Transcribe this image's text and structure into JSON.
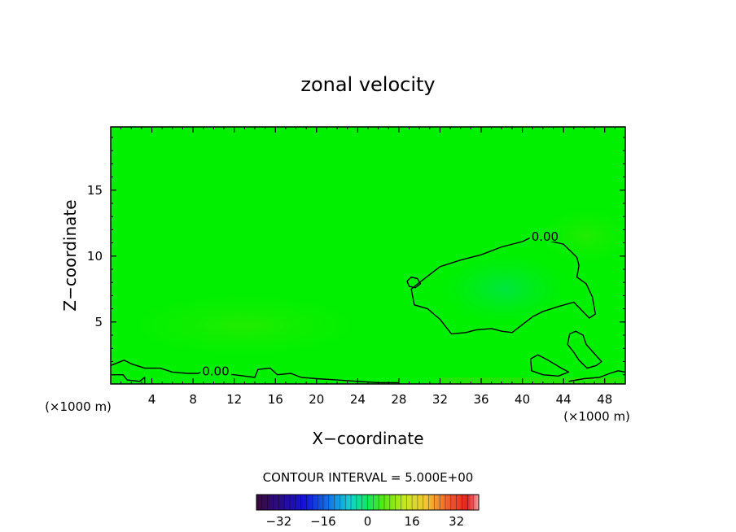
{
  "chart_data": {
    "type": "contour",
    "title": "zonal velocity",
    "xlabel": "X−coordinate",
    "ylabel": "Z−coordinate",
    "x_unit_left": "(×1000 m)",
    "x_unit_right": "(×1000 m)",
    "xlim": [
      0,
      50
    ],
    "ylim": [
      0.3,
      19.8
    ],
    "xticks": [
      4,
      8,
      12,
      16,
      20,
      24,
      28,
      32,
      36,
      40,
      44,
      48
    ],
    "yticks": [
      5,
      10,
      15
    ],
    "field_color": "#00f000",
    "contour_label": "0.00",
    "contours": [
      {
        "name": "main-zero-contour",
        "level": 0.0,
        "labeled": true,
        "points": [
          [
            29.2,
            7.5
          ],
          [
            30.5,
            8.3
          ],
          [
            32,
            9.2
          ],
          [
            34,
            9.7
          ],
          [
            36,
            10.1
          ],
          [
            38,
            10.7
          ],
          [
            40,
            11.1
          ],
          [
            40.8,
            11.4
          ],
          [
            41.2,
            11.4
          ],
          [
            44,
            10.9
          ],
          [
            45.3,
            9.9
          ],
          [
            45.5,
            9.3
          ],
          [
            45.3,
            8.4
          ],
          [
            46.2,
            7.9
          ],
          [
            46.8,
            6.9
          ],
          [
            47.1,
            5.6
          ],
          [
            46.5,
            5.3
          ],
          [
            45,
            6.5
          ],
          [
            43.6,
            6.2
          ],
          [
            42,
            5.8
          ],
          [
            41,
            5.4
          ],
          [
            40,
            4.8
          ],
          [
            39,
            4.2
          ],
          [
            38,
            4.3
          ],
          [
            37,
            4.5
          ],
          [
            35.5,
            4.4
          ],
          [
            34.5,
            4.2
          ],
          [
            33.1,
            4.1
          ],
          [
            32,
            5.2
          ],
          [
            30.8,
            6.0
          ],
          [
            29.5,
            6.3
          ],
          [
            29.2,
            7.5
          ]
        ]
      },
      {
        "name": "small-zero-contour",
        "level": 0.0,
        "labeled": false,
        "points": [
          [
            28.8,
            8.1
          ],
          [
            29.2,
            8.4
          ],
          [
            29.8,
            8.3
          ],
          [
            30.1,
            7.9
          ],
          [
            29.6,
            7.6
          ],
          [
            29.0,
            7.7
          ],
          [
            28.8,
            8.1
          ]
        ]
      },
      {
        "name": "lower-right-zero-contour",
        "level": 0.0,
        "labeled": false,
        "points": [
          [
            44.6,
            4.1
          ],
          [
            45.2,
            4.3
          ],
          [
            45.9,
            4.0
          ],
          [
            46.2,
            3.3
          ],
          [
            47.0,
            2.6
          ],
          [
            47.7,
            2.0
          ],
          [
            47.2,
            1.7
          ],
          [
            46.3,
            1.5
          ],
          [
            45.5,
            2.1
          ],
          [
            45.0,
            2.7
          ],
          [
            44.4,
            3.3
          ],
          [
            44.6,
            4.1
          ]
        ]
      },
      {
        "name": "lower-right-zero-contour-2",
        "level": 0.0,
        "labeled": false,
        "points": [
          [
            40.8,
            2.2
          ],
          [
            41.5,
            2.5
          ],
          [
            42.5,
            2.1
          ],
          [
            43.8,
            1.5
          ],
          [
            44.5,
            1.2
          ],
          [
            43.5,
            0.9
          ],
          [
            42,
            1.0
          ],
          [
            40.9,
            1.3
          ],
          [
            40.8,
            2.2
          ]
        ]
      },
      {
        "name": "bottom-zero-contour",
        "level": 0.0,
        "labeled": true,
        "points": [
          [
            0,
            1.7
          ],
          [
            1.3,
            2.1
          ],
          [
            2.1,
            1.8
          ],
          [
            3.3,
            1.5
          ],
          [
            4.8,
            1.5
          ],
          [
            6.0,
            1.2
          ],
          [
            7.5,
            1.1
          ],
          [
            8.5,
            1.1
          ],
          [
            8.8,
            1.2
          ],
          [
            12.0,
            1.0
          ],
          [
            14.0,
            0.8
          ],
          [
            14.3,
            1.4
          ],
          [
            15.5,
            1.5
          ],
          [
            16.2,
            1.0
          ],
          [
            17.5,
            1.1
          ],
          [
            18.5,
            0.8
          ],
          [
            20.0,
            0.7
          ],
          [
            22.0,
            0.6
          ],
          [
            24.0,
            0.5
          ],
          [
            26.0,
            0.4
          ],
          [
            28.0,
            0.4
          ]
        ]
      },
      {
        "name": "bottom-right-zero-contour",
        "level": 0.0,
        "labeled": false,
        "points": [
          [
            44.5,
            0.5
          ],
          [
            46.0,
            0.7
          ],
          [
            47.5,
            0.8
          ],
          [
            48.5,
            1.1
          ],
          [
            49.3,
            1.3
          ],
          [
            50,
            1.2
          ]
        ]
      },
      {
        "name": "bottom-left-zero-contour",
        "level": 0.0,
        "labeled": false,
        "points": [
          [
            0.1,
            1.0
          ],
          [
            1.2,
            1.0
          ],
          [
            1.6,
            0.6
          ],
          [
            2.8,
            0.5
          ],
          [
            3.3,
            0.8
          ],
          [
            3.3,
            0.3
          ]
        ]
      }
    ],
    "colorbar": {
      "label": "CONTOUR INTERVAL = 5.000E+00",
      "range": [
        -40,
        40
      ],
      "ticks": [
        -32,
        -16,
        0,
        16,
        32
      ],
      "tick_labels": [
        "−32",
        "−16",
        "0",
        "16",
        "32"
      ]
    }
  }
}
